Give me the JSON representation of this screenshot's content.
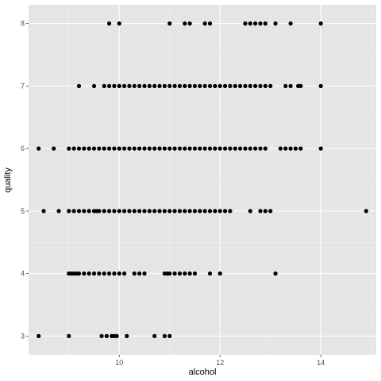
{
  "chart_data": {
    "type": "scatter",
    "title": "",
    "xlabel": "alcohol",
    "ylabel": "quality",
    "xlim": [
      8.2,
      15.1
    ],
    "ylim": [
      2.7,
      8.3
    ],
    "x_ticks": [
      10,
      12,
      14
    ],
    "y_ticks": [
      3,
      4,
      5,
      6,
      7,
      8
    ],
    "grid": true,
    "legend": "none",
    "colors": {
      "panel": "#e5e5e5",
      "grid_major": "#ffffff",
      "grid_minor": "#f2f2f2",
      "point": "#000000"
    },
    "series": [
      {
        "points": [
          {
            "x": 8.4,
            "y": 3
          },
          {
            "x": 9.0,
            "y": 3
          },
          {
            "x": 9.65,
            "y": 3
          },
          {
            "x": 9.75,
            "y": 3
          },
          {
            "x": 9.85,
            "y": 3
          },
          {
            "x": 9.9,
            "y": 3
          },
          {
            "x": 9.95,
            "y": 3
          },
          {
            "x": 10.15,
            "y": 3
          },
          {
            "x": 10.7,
            "y": 3
          },
          {
            "x": 10.9,
            "y": 3
          },
          {
            "x": 11.0,
            "y": 3
          },
          {
            "x": 9.0,
            "y": 4
          },
          {
            "x": 9.05,
            "y": 4
          },
          {
            "x": 9.1,
            "y": 4
          },
          {
            "x": 9.15,
            "y": 4
          },
          {
            "x": 9.2,
            "y": 4
          },
          {
            "x": 9.3,
            "y": 4
          },
          {
            "x": 9.4,
            "y": 4
          },
          {
            "x": 9.5,
            "y": 4
          },
          {
            "x": 9.6,
            "y": 4
          },
          {
            "x": 9.7,
            "y": 4
          },
          {
            "x": 9.8,
            "y": 4
          },
          {
            "x": 9.9,
            "y": 4
          },
          {
            "x": 10.0,
            "y": 4
          },
          {
            "x": 10.1,
            "y": 4
          },
          {
            "x": 10.3,
            "y": 4
          },
          {
            "x": 10.4,
            "y": 4
          },
          {
            "x": 10.5,
            "y": 4
          },
          {
            "x": 10.9,
            "y": 4
          },
          {
            "x": 10.95,
            "y": 4
          },
          {
            "x": 11.0,
            "y": 4
          },
          {
            "x": 11.1,
            "y": 4
          },
          {
            "x": 11.2,
            "y": 4
          },
          {
            "x": 11.3,
            "y": 4
          },
          {
            "x": 11.4,
            "y": 4
          },
          {
            "x": 11.5,
            "y": 4
          },
          {
            "x": 11.8,
            "y": 4
          },
          {
            "x": 12.0,
            "y": 4
          },
          {
            "x": 13.1,
            "y": 4
          },
          {
            "x": 8.5,
            "y": 5
          },
          {
            "x": 8.8,
            "y": 5
          },
          {
            "x": 9.0,
            "y": 5
          },
          {
            "x": 9.1,
            "y": 5
          },
          {
            "x": 9.2,
            "y": 5
          },
          {
            "x": 9.3,
            "y": 5
          },
          {
            "x": 9.4,
            "y": 5
          },
          {
            "x": 9.5,
            "y": 5
          },
          {
            "x": 9.55,
            "y": 5
          },
          {
            "x": 9.6,
            "y": 5
          },
          {
            "x": 9.7,
            "y": 5
          },
          {
            "x": 9.8,
            "y": 5
          },
          {
            "x": 9.9,
            "y": 5
          },
          {
            "x": 10.0,
            "y": 5
          },
          {
            "x": 10.1,
            "y": 5
          },
          {
            "x": 10.2,
            "y": 5
          },
          {
            "x": 10.3,
            "y": 5
          },
          {
            "x": 10.4,
            "y": 5
          },
          {
            "x": 10.5,
            "y": 5
          },
          {
            "x": 10.6,
            "y": 5
          },
          {
            "x": 10.7,
            "y": 5
          },
          {
            "x": 10.8,
            "y": 5
          },
          {
            "x": 10.9,
            "y": 5
          },
          {
            "x": 11.0,
            "y": 5
          },
          {
            "x": 11.1,
            "y": 5
          },
          {
            "x": 11.2,
            "y": 5
          },
          {
            "x": 11.3,
            "y": 5
          },
          {
            "x": 11.4,
            "y": 5
          },
          {
            "x": 11.5,
            "y": 5
          },
          {
            "x": 11.6,
            "y": 5
          },
          {
            "x": 11.7,
            "y": 5
          },
          {
            "x": 11.8,
            "y": 5
          },
          {
            "x": 11.9,
            "y": 5
          },
          {
            "x": 12.0,
            "y": 5
          },
          {
            "x": 12.1,
            "y": 5
          },
          {
            "x": 12.2,
            "y": 5
          },
          {
            "x": 12.6,
            "y": 5
          },
          {
            "x": 12.8,
            "y": 5
          },
          {
            "x": 12.9,
            "y": 5
          },
          {
            "x": 13.0,
            "y": 5
          },
          {
            "x": 14.9,
            "y": 5
          },
          {
            "x": 8.4,
            "y": 6
          },
          {
            "x": 8.7,
            "y": 6
          },
          {
            "x": 9.0,
            "y": 6
          },
          {
            "x": 9.1,
            "y": 6
          },
          {
            "x": 9.2,
            "y": 6
          },
          {
            "x": 9.3,
            "y": 6
          },
          {
            "x": 9.4,
            "y": 6
          },
          {
            "x": 9.5,
            "y": 6
          },
          {
            "x": 9.6,
            "y": 6
          },
          {
            "x": 9.7,
            "y": 6
          },
          {
            "x": 9.8,
            "y": 6
          },
          {
            "x": 9.9,
            "y": 6
          },
          {
            "x": 10.0,
            "y": 6
          },
          {
            "x": 10.1,
            "y": 6
          },
          {
            "x": 10.2,
            "y": 6
          },
          {
            "x": 10.3,
            "y": 6
          },
          {
            "x": 10.4,
            "y": 6
          },
          {
            "x": 10.5,
            "y": 6
          },
          {
            "x": 10.6,
            "y": 6
          },
          {
            "x": 10.7,
            "y": 6
          },
          {
            "x": 10.8,
            "y": 6
          },
          {
            "x": 10.9,
            "y": 6
          },
          {
            "x": 11.0,
            "y": 6
          },
          {
            "x": 11.1,
            "y": 6
          },
          {
            "x": 11.2,
            "y": 6
          },
          {
            "x": 11.3,
            "y": 6
          },
          {
            "x": 11.4,
            "y": 6
          },
          {
            "x": 11.5,
            "y": 6
          },
          {
            "x": 11.6,
            "y": 6
          },
          {
            "x": 11.7,
            "y": 6
          },
          {
            "x": 11.8,
            "y": 6
          },
          {
            "x": 11.9,
            "y": 6
          },
          {
            "x": 12.0,
            "y": 6
          },
          {
            "x": 12.1,
            "y": 6
          },
          {
            "x": 12.2,
            "y": 6
          },
          {
            "x": 12.3,
            "y": 6
          },
          {
            "x": 12.4,
            "y": 6
          },
          {
            "x": 12.5,
            "y": 6
          },
          {
            "x": 12.6,
            "y": 6
          },
          {
            "x": 12.7,
            "y": 6
          },
          {
            "x": 12.8,
            "y": 6
          },
          {
            "x": 12.9,
            "y": 6
          },
          {
            "x": 13.2,
            "y": 6
          },
          {
            "x": 13.3,
            "y": 6
          },
          {
            "x": 13.4,
            "y": 6
          },
          {
            "x": 13.5,
            "y": 6
          },
          {
            "x": 13.6,
            "y": 6
          },
          {
            "x": 14.0,
            "y": 6
          },
          {
            "x": 9.2,
            "y": 7
          },
          {
            "x": 9.5,
            "y": 7
          },
          {
            "x": 9.7,
            "y": 7
          },
          {
            "x": 9.8,
            "y": 7
          },
          {
            "x": 9.9,
            "y": 7
          },
          {
            "x": 10.0,
            "y": 7
          },
          {
            "x": 10.1,
            "y": 7
          },
          {
            "x": 10.2,
            "y": 7
          },
          {
            "x": 10.3,
            "y": 7
          },
          {
            "x": 10.4,
            "y": 7
          },
          {
            "x": 10.5,
            "y": 7
          },
          {
            "x": 10.6,
            "y": 7
          },
          {
            "x": 10.7,
            "y": 7
          },
          {
            "x": 10.8,
            "y": 7
          },
          {
            "x": 10.9,
            "y": 7
          },
          {
            "x": 11.0,
            "y": 7
          },
          {
            "x": 11.1,
            "y": 7
          },
          {
            "x": 11.2,
            "y": 7
          },
          {
            "x": 11.3,
            "y": 7
          },
          {
            "x": 11.4,
            "y": 7
          },
          {
            "x": 11.5,
            "y": 7
          },
          {
            "x": 11.6,
            "y": 7
          },
          {
            "x": 11.7,
            "y": 7
          },
          {
            "x": 11.8,
            "y": 7
          },
          {
            "x": 11.9,
            "y": 7
          },
          {
            "x": 12.0,
            "y": 7
          },
          {
            "x": 12.1,
            "y": 7
          },
          {
            "x": 12.2,
            "y": 7
          },
          {
            "x": 12.3,
            "y": 7
          },
          {
            "x": 12.4,
            "y": 7
          },
          {
            "x": 12.5,
            "y": 7
          },
          {
            "x": 12.6,
            "y": 7
          },
          {
            "x": 12.7,
            "y": 7
          },
          {
            "x": 12.8,
            "y": 7
          },
          {
            "x": 12.9,
            "y": 7
          },
          {
            "x": 13.0,
            "y": 7
          },
          {
            "x": 13.3,
            "y": 7
          },
          {
            "x": 13.4,
            "y": 7
          },
          {
            "x": 13.55,
            "y": 7
          },
          {
            "x": 13.6,
            "y": 7
          },
          {
            "x": 14.0,
            "y": 7
          },
          {
            "x": 9.8,
            "y": 8
          },
          {
            "x": 10.0,
            "y": 8
          },
          {
            "x": 11.0,
            "y": 8
          },
          {
            "x": 11.3,
            "y": 8
          },
          {
            "x": 11.4,
            "y": 8
          },
          {
            "x": 11.7,
            "y": 8
          },
          {
            "x": 11.8,
            "y": 8
          },
          {
            "x": 12.5,
            "y": 8
          },
          {
            "x": 12.6,
            "y": 8
          },
          {
            "x": 12.7,
            "y": 8
          },
          {
            "x": 12.8,
            "y": 8
          },
          {
            "x": 12.9,
            "y": 8
          },
          {
            "x": 13.1,
            "y": 8
          },
          {
            "x": 13.4,
            "y": 8
          },
          {
            "x": 14.0,
            "y": 8
          }
        ]
      }
    ]
  }
}
